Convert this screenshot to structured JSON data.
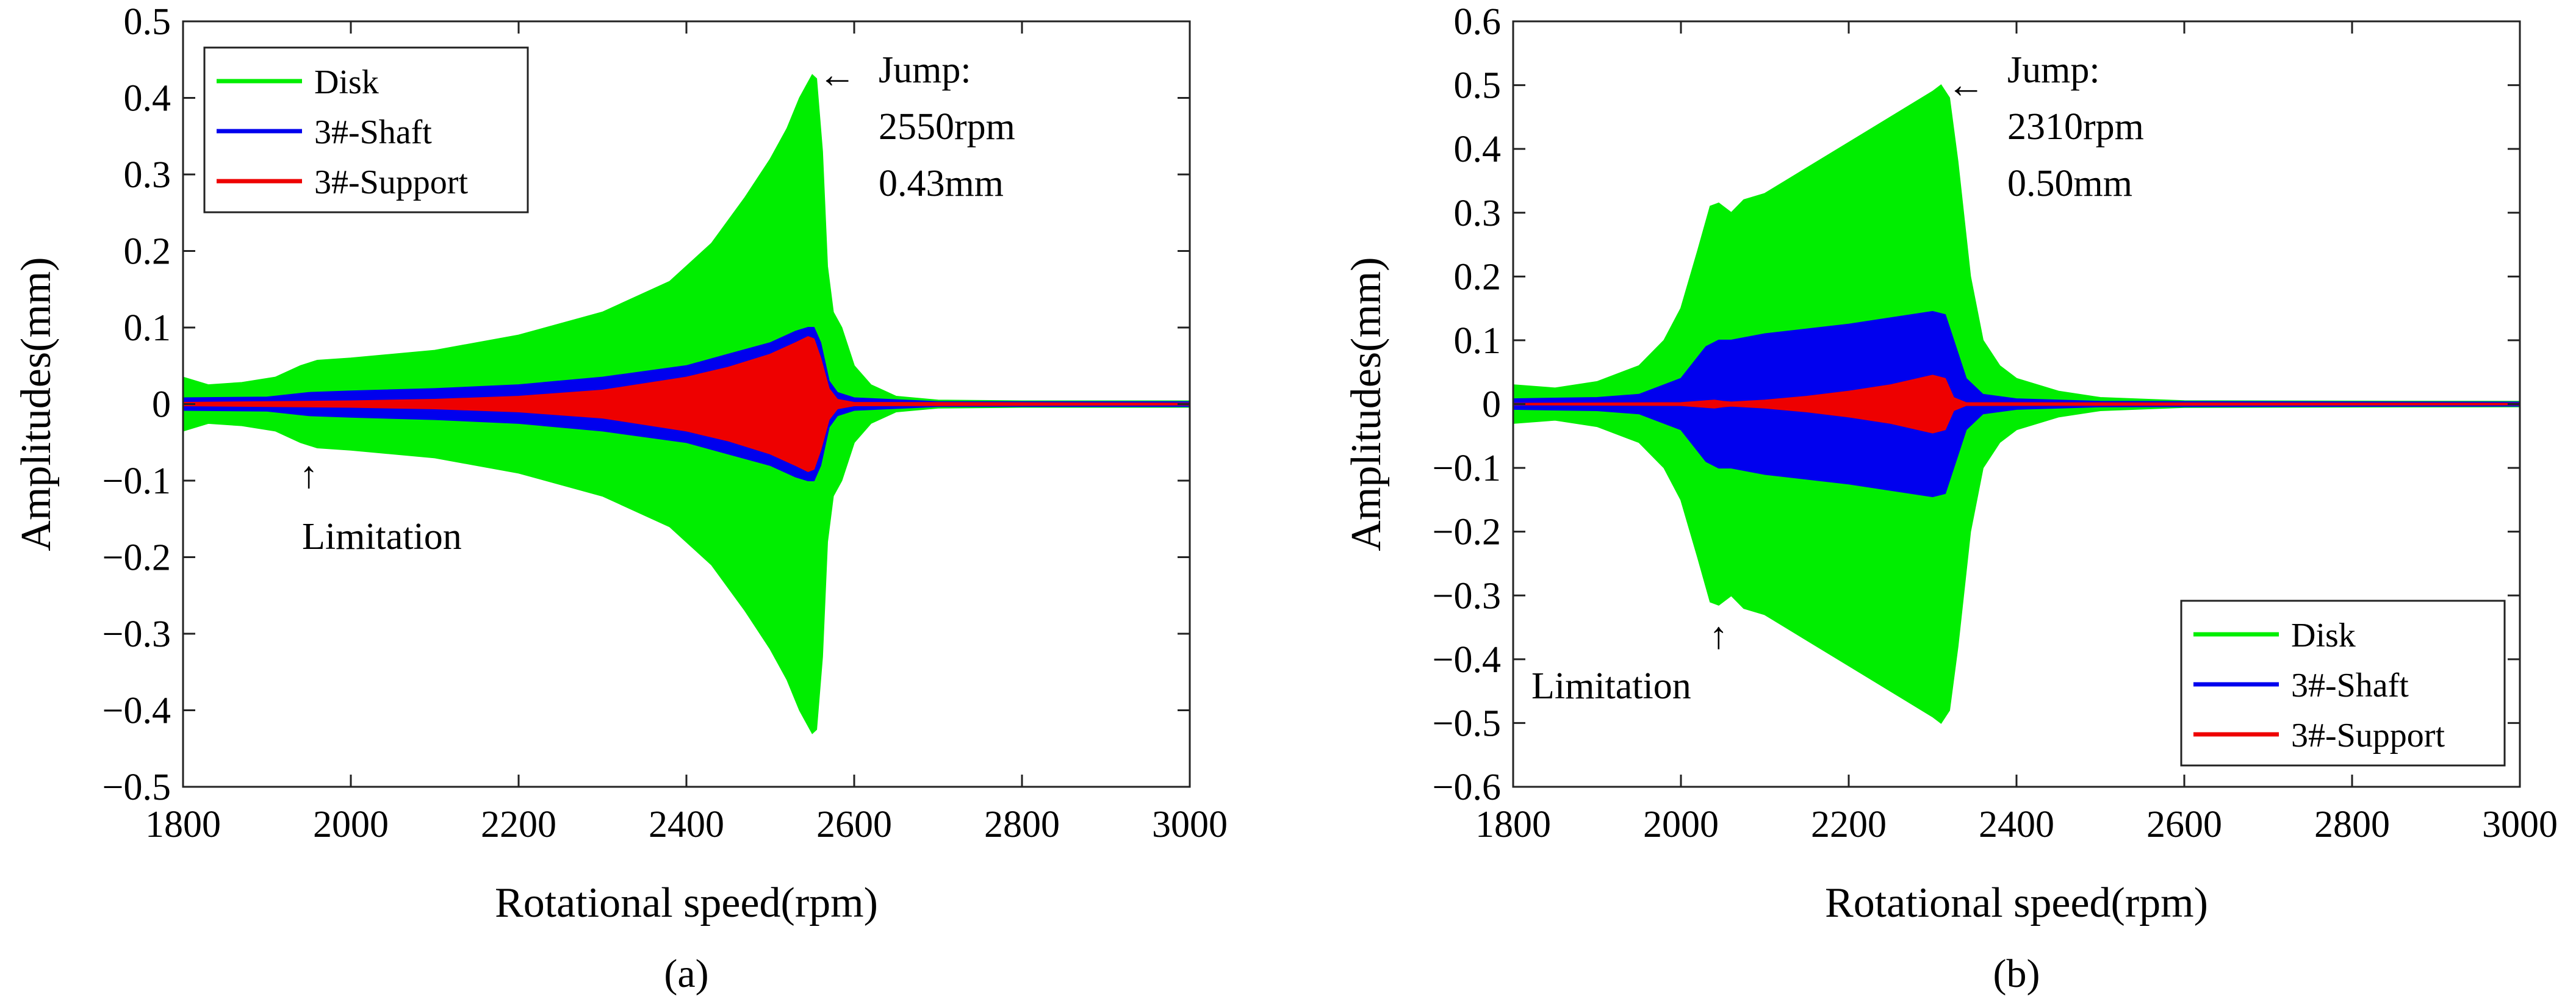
{
  "chart_data": [
    {
      "type": "area",
      "panel_label": "(a)",
      "xlabel": "Rotational speed(rpm)",
      "ylabel": "Amplitudes(mm)",
      "xlim": [
        1800,
        3000
      ],
      "ylim": [
        -0.5,
        0.5
      ],
      "xticks": [
        1800,
        2000,
        2200,
        2400,
        2600,
        2800,
        3000
      ],
      "xtick_labels": [
        "1800",
        "2000",
        "2200",
        "2400",
        "2600",
        "2800",
        "3000"
      ],
      "yticks": [
        0.5,
        0.4,
        0.3,
        0.2,
        0.1,
        0,
        -0.1,
        -0.2,
        -0.3,
        -0.4,
        -0.5
      ],
      "ytick_labels": [
        "0.5",
        "0.4",
        "0.3",
        "0.2",
        "0.1",
        "0",
        "−0.1",
        "−0.2",
        "−0.3",
        "−0.4",
        "−0.5"
      ],
      "legend": {
        "placement": "top-left",
        "entries": [
          "Disk",
          "3#-Shaft",
          "3#-Support"
        ]
      },
      "series": [
        {
          "name": "Disk",
          "color": "#00ee00",
          "x": [
            1800,
            1830,
            1870,
            1910,
            1940,
            1960,
            2000,
            2100,
            2200,
            2300,
            2380,
            2430,
            2470,
            2500,
            2520,
            2535,
            2545,
            2550,
            2555,
            2562,
            2568,
            2575,
            2585,
            2600,
            2620,
            2650,
            2700,
            2800,
            3000
          ],
          "values": [
            0.035,
            0.025,
            0.028,
            0.035,
            0.05,
            0.057,
            0.06,
            0.07,
            0.09,
            0.12,
            0.16,
            0.21,
            0.27,
            0.32,
            0.36,
            0.4,
            0.42,
            0.43,
            0.425,
            0.33,
            0.18,
            0.12,
            0.1,
            0.05,
            0.025,
            0.01,
            0.005,
            0.004,
            0.004
          ]
        },
        {
          "name": "3#-Shaft",
          "color": "#0000ee",
          "x": [
            1800,
            1900,
            1950,
            2000,
            2100,
            2200,
            2300,
            2400,
            2450,
            2500,
            2530,
            2545,
            2552,
            2560,
            2570,
            2580,
            2600,
            2700,
            3000
          ],
          "values": [
            0.008,
            0.009,
            0.015,
            0.017,
            0.02,
            0.025,
            0.035,
            0.05,
            0.065,
            0.08,
            0.095,
            0.1,
            0.1,
            0.08,
            0.03,
            0.015,
            0.008,
            0.003,
            0.003
          ]
        },
        {
          "name": "3#-Support",
          "color": "#ee0000",
          "x": [
            1800,
            1900,
            2000,
            2100,
            2200,
            2300,
            2400,
            2450,
            2500,
            2530,
            2545,
            2552,
            2560,
            2570,
            2580,
            2600,
            3000
          ],
          "values": [
            0.002,
            0.003,
            0.004,
            0.006,
            0.01,
            0.018,
            0.035,
            0.048,
            0.065,
            0.08,
            0.088,
            0.085,
            0.06,
            0.02,
            0.006,
            0.002,
            0.001
          ]
        }
      ],
      "annotations": {
        "jump": {
          "lines": [
            "Jump:",
            "2550rpm",
            "0.43mm"
          ],
          "arrow": "←",
          "target": [
            2550,
            0.43
          ]
        },
        "limitation": {
          "label": "Limitation",
          "arrow": "↑",
          "target": [
            1950,
            -0.065
          ]
        }
      }
    },
    {
      "type": "area",
      "panel_label": "(b)",
      "xlabel": "Rotational speed(rpm)",
      "ylabel": "Amplitudes(mm)",
      "xlim": [
        1800,
        3000
      ],
      "ylim": [
        -0.6,
        0.6
      ],
      "xticks": [
        1800,
        2000,
        2200,
        2400,
        2600,
        2800,
        3000
      ],
      "xtick_labels": [
        "1800",
        "2000",
        "2200",
        "2400",
        "2600",
        "2800",
        "3000"
      ],
      "yticks": [
        0.6,
        0.5,
        0.4,
        0.3,
        0.2,
        0.1,
        0,
        -0.1,
        -0.2,
        -0.3,
        -0.4,
        -0.5,
        -0.6
      ],
      "ytick_labels": [
        "0.6",
        "0.5",
        "0.4",
        "0.3",
        "0.2",
        "0.1",
        "0",
        "−0.1",
        "−0.2",
        "−0.3",
        "−0.4",
        "−0.5",
        "−0.6"
      ],
      "legend": {
        "placement": "bottom-right",
        "entries": [
          "Disk",
          "3#-Shaft",
          "3#-Support"
        ]
      },
      "series": [
        {
          "name": "Disk",
          "color": "#00ee00",
          "x": [
            1800,
            1850,
            1900,
            1950,
            1980,
            2000,
            2020,
            2035,
            2045,
            2060,
            2075,
            2100,
            2150,
            2200,
            2250,
            2300,
            2310,
            2320,
            2330,
            2345,
            2360,
            2380,
            2400,
            2450,
            2500,
            2600,
            3000
          ],
          "values": [
            0.03,
            0.025,
            0.035,
            0.06,
            0.1,
            0.15,
            0.24,
            0.31,
            0.315,
            0.3,
            0.32,
            0.33,
            0.37,
            0.41,
            0.45,
            0.49,
            0.5,
            0.48,
            0.38,
            0.2,
            0.1,
            0.06,
            0.04,
            0.02,
            0.01,
            0.005,
            0.004
          ]
        },
        {
          "name": "3#-Shaft",
          "color": "#0000ee",
          "x": [
            1800,
            1900,
            1950,
            2000,
            2030,
            2045,
            2060,
            2100,
            2200,
            2300,
            2315,
            2325,
            2340,
            2360,
            2400,
            2500,
            3000
          ],
          "values": [
            0.008,
            0.01,
            0.015,
            0.04,
            0.09,
            0.1,
            0.1,
            0.11,
            0.125,
            0.145,
            0.14,
            0.1,
            0.04,
            0.015,
            0.008,
            0.004,
            0.003
          ]
        },
        {
          "name": "3#-Support",
          "color": "#ee0000",
          "x": [
            1800,
            2000,
            2040,
            2050,
            2060,
            2100,
            2150,
            2200,
            2250,
            2300,
            2315,
            2325,
            2340,
            3000
          ],
          "values": [
            0.001,
            0.002,
            0.006,
            0.004,
            0.003,
            0.006,
            0.012,
            0.02,
            0.03,
            0.045,
            0.04,
            0.01,
            0.002,
            0.001
          ]
        }
      ],
      "annotations": {
        "jump": {
          "lines": [
            "Jump:",
            "2310rpm",
            "0.50mm"
          ],
          "arrow": "←",
          "target": [
            2310,
            0.5
          ]
        },
        "limitation": {
          "label": "Limitation",
          "arrow": "↑",
          "target": [
            2045,
            -0.33
          ]
        }
      }
    }
  ]
}
